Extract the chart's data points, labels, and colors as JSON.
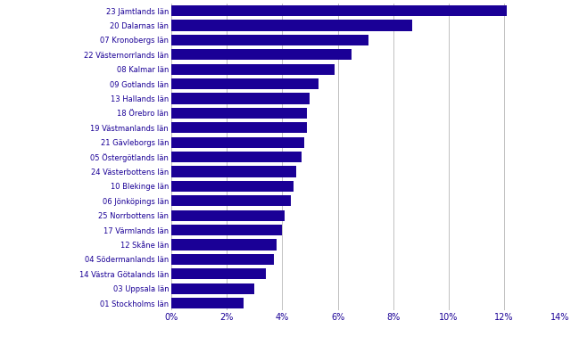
{
  "categories": [
    "01 Stockholms län",
    "03 Uppsala län",
    "14 Västra Götalands län",
    "04 Södermanlands län",
    "12 Skåne län",
    "17 Värmlands län",
    "25 Norrbottens län",
    "06 Jönköpings län",
    "10 Blekinge län",
    "24 Västerbottens län",
    "05 Östergötlands län",
    "21 Gävleborgs län",
    "19 Västmanlands län",
    "18 Örebro län",
    "13 Hallands län",
    "09 Gotlands län",
    "08 Kalmar län",
    "22 Västernorrlands län",
    "07 Kronobergs län",
    "20 Dalarnas län",
    "23 Jämtlands län"
  ],
  "values": [
    0.026,
    0.03,
    0.034,
    0.037,
    0.038,
    0.04,
    0.041,
    0.043,
    0.044,
    0.045,
    0.047,
    0.048,
    0.049,
    0.049,
    0.05,
    0.053,
    0.059,
    0.065,
    0.071,
    0.087,
    0.121
  ],
  "bar_color": "#1a0096",
  "xlim": [
    0,
    0.14
  ],
  "xtick_vals": [
    0.0,
    0.02,
    0.04,
    0.06,
    0.08,
    0.1,
    0.12,
    0.14
  ],
  "xtick_labels": [
    "0%",
    "2%",
    "4%",
    "6%",
    "8%",
    "10%",
    "12%",
    "14%"
  ],
  "label_color": "#1a0096",
  "tick_color": "#1a0096",
  "grid_color": "#c0c0c0",
  "background_color": "#ffffff",
  "bar_height": 0.75,
  "label_fontsize": 6.0,
  "tick_fontsize": 7.0
}
